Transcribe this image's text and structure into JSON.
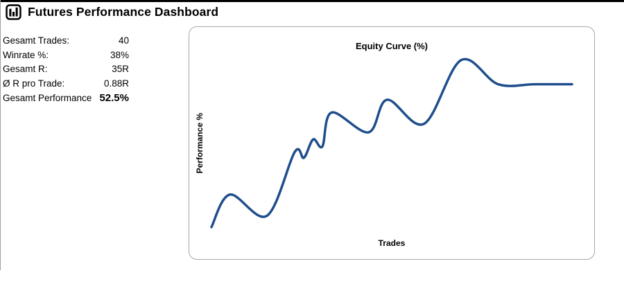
{
  "header": {
    "title": "Futures Performance Dashboard",
    "icon": "bar-chart-icon"
  },
  "stats": {
    "rows": [
      {
        "label": "Gesamt Trades:",
        "value": "40"
      },
      {
        "label": "Winrate %:",
        "value": "38%"
      },
      {
        "label": "Gesamt R:",
        "value": "35R"
      },
      {
        "label": "Ø R pro Trade:",
        "value": "0.88R"
      },
      {
        "label": "Gesamt Performance",
        "value": "52.5%"
      }
    ]
  },
  "chart_data": {
    "type": "line",
    "title": "Equity Curve (%)",
    "xlabel": "Trades",
    "ylabel": "Performance %",
    "xlim": [
      1,
      40
    ],
    "ylim": [
      0,
      65
    ],
    "grid": false,
    "ticks_visible": false,
    "legend": "none",
    "smooth": true,
    "line_color": "#1F4E8C",
    "line_width": 3.5,
    "series": [
      {
        "name": "Equity Curve",
        "points": [
          {
            "x": 1,
            "y": 2
          },
          {
            "x": 3,
            "y": 13.5
          },
          {
            "x": 7,
            "y": 6
          },
          {
            "x": 10,
            "y": 28.5
          },
          {
            "x": 11,
            "y": 26.5
          },
          {
            "x": 12,
            "y": 33
          },
          {
            "x": 13,
            "y": 30.5
          },
          {
            "x": 14,
            "y": 42.5
          },
          {
            "x": 18,
            "y": 35.5
          },
          {
            "x": 20,
            "y": 47
          },
          {
            "x": 24,
            "y": 38.5
          },
          {
            "x": 28,
            "y": 61
          },
          {
            "x": 32,
            "y": 52.5
          },
          {
            "x": 36,
            "y": 52.5
          },
          {
            "x": 40,
            "y": 52.5
          }
        ]
      }
    ]
  },
  "colors": {
    "top_border": "#000000",
    "left_border": "#9D9D9D",
    "card_border": "#A6A6A6",
    "line": "#1F4E8C",
    "text": "#000000",
    "background": "#FFFFFF"
  }
}
